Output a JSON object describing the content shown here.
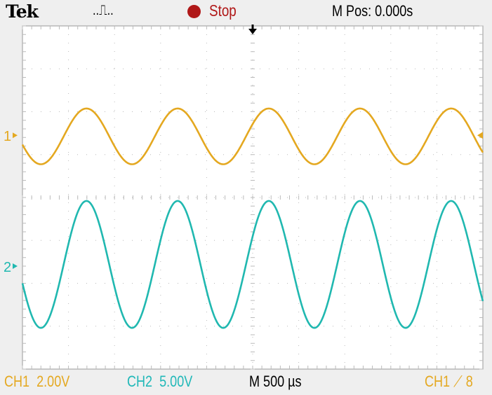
{
  "header": {
    "brand": "Tek",
    "acquisition_icon": "pulse-icon",
    "acquisition_glyph": "..⎍..",
    "run_state": "Stop",
    "run_state_color": "#b01818",
    "horizontal_position": "M Pos: 0.000s"
  },
  "footer": {
    "ch1_label": "CH1",
    "ch1_scale": "2.00V",
    "ch2_label": "CH2",
    "ch2_scale": "5.00V",
    "timebase": "M 500 µs",
    "trigger_source": "CH1",
    "trigger_slope_icon": "rising-edge-icon",
    "trigger_slope_glyph": "⟋",
    "trigger_level_partial": "8"
  },
  "markers": {
    "ch1": "1",
    "ch2": "2"
  },
  "chart_data": {
    "type": "line",
    "x_divisions": 10,
    "y_divisions": 8,
    "x_unit": "s",
    "xlim": [
      -0.0025,
      0.0025
    ],
    "grid": true,
    "series": [
      {
        "name": "CH1",
        "color": "#e4a820",
        "waveform": "sine",
        "volts_per_div": 2.0,
        "ground_level_div": 1.45,
        "amplitude_V": 1.3,
        "offset_V": -0.05,
        "frequency_Hz": 1010,
        "first_trough_s": -0.0023
      },
      {
        "name": "CH2",
        "color": "#20b8b0",
        "waveform": "sine",
        "volts_per_div": 5.0,
        "ground_level_div": -1.6,
        "amplitude_V": 7.4,
        "offset_V": 0.2,
        "frequency_Hz": 1010,
        "first_trough_s": -0.0023
      }
    ]
  }
}
